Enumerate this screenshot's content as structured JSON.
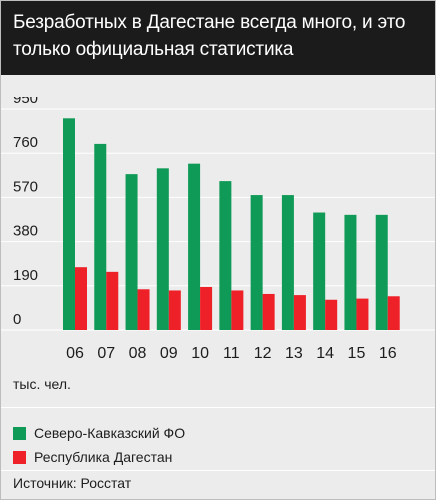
{
  "title": "Безработных в Дагестане всегда много, и это только официальная статистика",
  "unit_label": "тыс. чел.",
  "source": "Источник: Росстат",
  "colors": {
    "green": "#0f9a57",
    "red": "#ee2028",
    "grid": "#ffffff",
    "text": "#1d1d1d"
  },
  "chart_data": {
    "type": "bar",
    "categories": [
      "06",
      "07",
      "08",
      "09",
      "10",
      "11",
      "12",
      "13",
      "14",
      "15",
      "16"
    ],
    "ylim": [
      0,
      950
    ],
    "yticks": [
      0,
      190,
      380,
      570,
      760,
      950
    ],
    "grid": true,
    "legend_position": "bottom",
    "series": [
      {
        "name": "Северо-Кавказский ФО",
        "color": "#0f9a57",
        "values": [
          910,
          800,
          670,
          695,
          715,
          640,
          580,
          580,
          505,
          495,
          495
        ]
      },
      {
        "name": "Республика Дагестан",
        "color": "#ee2028",
        "values": [
          270,
          250,
          175,
          170,
          185,
          170,
          155,
          150,
          130,
          135,
          145
        ]
      }
    ]
  }
}
